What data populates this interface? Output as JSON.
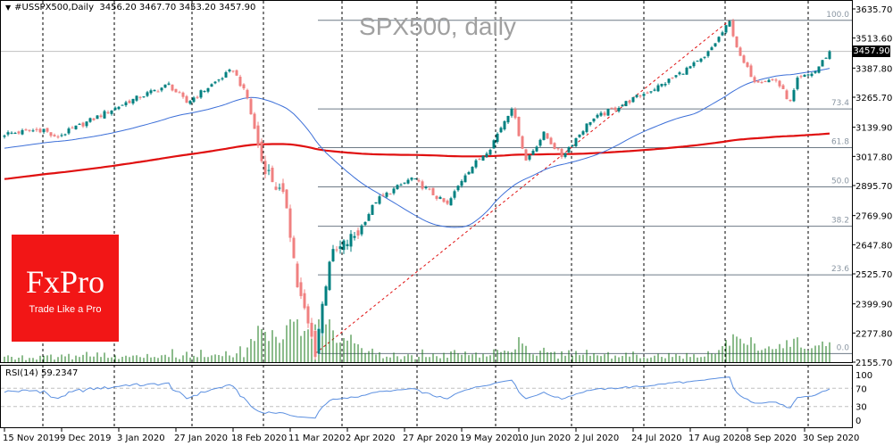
{
  "header": {
    "symbol": "#USSPX500,Daily",
    "ohlc": "3456.20 3467.70 3453.20 3457.90"
  },
  "watermark_title": "SPX500, daily",
  "logo": {
    "brand": "FxPro",
    "tagline": "Trade Like a Pro"
  },
  "current_price": "3457.90",
  "colors": {
    "bull": "#008080",
    "bear": "#f08080",
    "ma_fast": "#3c6fd8",
    "ma_slow": "#e01010",
    "volume": "#1a7a1a",
    "fib": "#6e7a86",
    "rsi": "#5b8fe0"
  },
  "chart_data": {
    "type": "candlestick",
    "title": "SPX500, daily",
    "ylim": [
      2155.7,
      3635.7
    ],
    "y_ticks": [
      "3635.70",
      "3513.60",
      "3387.80",
      "3265.70",
      "3139.90",
      "3017.80",
      "2895.70",
      "2769.90",
      "2647.80",
      "2525.70",
      "2399.90",
      "2277.80",
      "2155.70"
    ],
    "bars": 232,
    "close_keyframes_bar_index_price": [
      [
        0,
        3112
      ],
      [
        11,
        3131
      ],
      [
        14,
        3094
      ],
      [
        34,
        3243
      ],
      [
        46,
        3318
      ],
      [
        51,
        3243
      ],
      [
        64,
        3382
      ],
      [
        68,
        3262
      ],
      [
        72,
        3000
      ],
      [
        79,
        2814
      ],
      [
        82,
        2477
      ],
      [
        87,
        2200
      ],
      [
        91,
        2590
      ],
      [
        99,
        2700
      ],
      [
        104,
        2832
      ],
      [
        114,
        2926
      ],
      [
        124,
        2814
      ],
      [
        129,
        2945
      ],
      [
        136,
        3056
      ],
      [
        142,
        3225
      ],
      [
        146,
        3000
      ],
      [
        151,
        3112
      ],
      [
        156,
        3019
      ],
      [
        164,
        3168
      ],
      [
        174,
        3243
      ],
      [
        184,
        3318
      ],
      [
        196,
        3430
      ],
      [
        203,
        3580
      ],
      [
        206,
        3430
      ],
      [
        210,
        3337
      ],
      [
        216,
        3337
      ],
      [
        220,
        3243
      ],
      [
        222,
        3337
      ],
      [
        227,
        3374
      ],
      [
        231,
        3457.9
      ]
    ],
    "last_close": 3457.9,
    "moving_averages": [
      {
        "name": "MA50",
        "period": 50
      },
      {
        "name": "MA200",
        "period": 200
      }
    ],
    "fibonacci": {
      "low": 2191.8,
      "high": 3588.0,
      "low_bar": 87,
      "high_bar": 203,
      "levels": [
        {
          "label": "100.0",
          "ratio": 1.0
        },
        {
          "label": "73.4",
          "ratio": 0.734
        },
        {
          "label": "61.8",
          "ratio": 0.618
        },
        {
          "label": "50.0",
          "ratio": 0.5
        },
        {
          "label": "38.2",
          "ratio": 0.382
        },
        {
          "label": "23.6",
          "ratio": 0.236
        },
        {
          "label": "0.0",
          "ratio": 0.0
        }
      ]
    },
    "rsi": {
      "label": "RSI(14) 59.2347",
      "period": 14,
      "levels": [
        "100",
        "70",
        "30",
        "0"
      ]
    },
    "x_labels": [
      {
        "label": "15 Nov 2019",
        "bar": 0
      },
      {
        "label": "9 Dec 2019",
        "bar": 16
      },
      {
        "label": "3 Jan 2020",
        "bar": 32
      },
      {
        "label": "27 Jan 2020",
        "bar": 48
      },
      {
        "label": "18 Feb 2020",
        "bar": 64
      },
      {
        "label": "11 Mar 2020",
        "bar": 80
      },
      {
        "label": "2 Apr 2020",
        "bar": 96
      },
      {
        "label": "27 Apr 2020",
        "bar": 112
      },
      {
        "label": "19 May 2020",
        "bar": 128
      },
      {
        "label": "10 Jun 2020",
        "bar": 144
      },
      {
        "label": "2 Jul 2020",
        "bar": 160
      },
      {
        "label": "24 Jul 2020",
        "bar": 176
      },
      {
        "label": "17 Aug 2020",
        "bar": 192
      },
      {
        "label": "8 Sep 2020",
        "bar": 208
      },
      {
        "label": "30 Sep 2020",
        "bar": 224
      }
    ],
    "month_separators_bar": [
      10.75,
      30.75,
      52.5,
      72.5,
      94.5,
      115.5,
      137.5,
      158.75,
      179,
      201.75,
      225
    ]
  }
}
